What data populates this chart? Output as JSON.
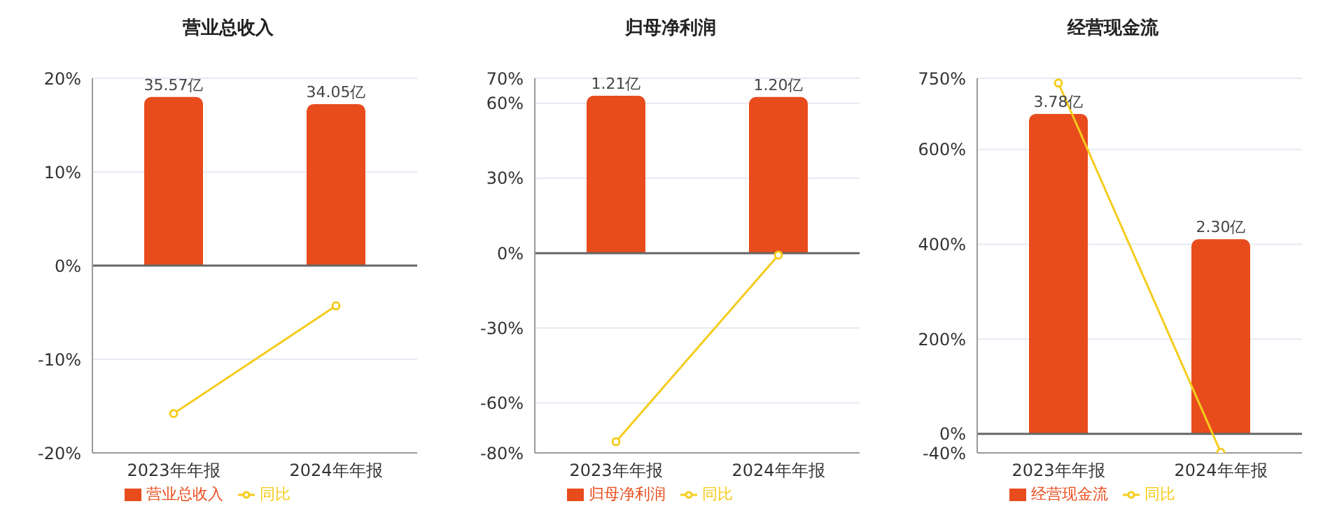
{
  "chart_data": [
    {
      "type": "bar",
      "title": "营业总收入",
      "categories": [
        "2023年年报",
        "2024年年报"
      ],
      "ylim": [
        -20,
        20
      ],
      "yticks": [
        {
          "value": -20,
          "label": "-20%"
        },
        {
          "value": -10,
          "label": "-10%"
        },
        {
          "value": 0,
          "label": "0%"
        },
        {
          "value": 10,
          "label": "10%"
        },
        {
          "value": 20,
          "label": "20%"
        }
      ],
      "grid": "y",
      "legend": "bottom",
      "ref_lines": [
        {
          "axis": "y",
          "value": 0,
          "color": "#666666"
        }
      ],
      "series": [
        {
          "name": "营业总收入",
          "axis": "y2",
          "color": "#e84c1c",
          "values": [
            35.57,
            34.05
          ],
          "value_labels": [
            "35.57亿",
            "34.05亿"
          ]
        },
        {
          "name": "同比",
          "type": "line",
          "color": "#f5cc1c",
          "marker": "circle",
          "values": [
            -15.8,
            -4.3
          ]
        }
      ]
    },
    {
      "type": "bar",
      "title": "归母净利润",
      "categories": [
        "2023年年报",
        "2024年年报"
      ],
      "ylim": [
        -80,
        70
      ],
      "yticks": [
        {
          "value": -80,
          "label": "-80%"
        },
        {
          "value": -60,
          "label": "-60%"
        },
        {
          "value": -30,
          "label": "-30%"
        },
        {
          "value": 0,
          "label": "0%"
        },
        {
          "value": 30,
          "label": "30%"
        },
        {
          "value": 60,
          "label": "60%"
        },
        {
          "value": 70,
          "label": "70%"
        }
      ],
      "grid": "y",
      "legend": "bottom",
      "ref_lines": [
        {
          "axis": "y",
          "value": 0,
          "color": "#666666"
        }
      ],
      "series": [
        {
          "name": "归母净利润",
          "axis": "y2",
          "color": "#e84c1c",
          "values": [
            1.21,
            1.2
          ],
          "value_labels": [
            "1.21亿",
            "1.20亿"
          ]
        },
        {
          "name": "同比",
          "type": "line",
          "color": "#f5cc1c",
          "marker": "circle",
          "values": [
            -75.5,
            -0.8
          ]
        }
      ]
    },
    {
      "type": "bar",
      "title": "经营现金流",
      "categories": [
        "2023年年报",
        "2024年年报"
      ],
      "ylim": [
        -40,
        750
      ],
      "yticks": [
        {
          "value": -40,
          "label": "-40%"
        },
        {
          "value": 0,
          "label": "0%"
        },
        {
          "value": 200,
          "label": "200%"
        },
        {
          "value": 400,
          "label": "400%"
        },
        {
          "value": 600,
          "label": "600%"
        },
        {
          "value": 750,
          "label": "750%"
        }
      ],
      "grid": "y",
      "legend": "bottom",
      "ref_lines": [
        {
          "axis": "y",
          "value": 0,
          "color": "#666666"
        }
      ],
      "series": [
        {
          "name": "经营现金流",
          "axis": "y2",
          "color": "#e84c1c",
          "values": [
            3.78,
            2.3
          ],
          "value_labels": [
            "3.78亿",
            "2.30亿"
          ]
        },
        {
          "name": "同比",
          "type": "line",
          "color": "#f5cc1c",
          "marker": "circle",
          "values": [
            740,
            -39
          ]
        }
      ]
    }
  ]
}
